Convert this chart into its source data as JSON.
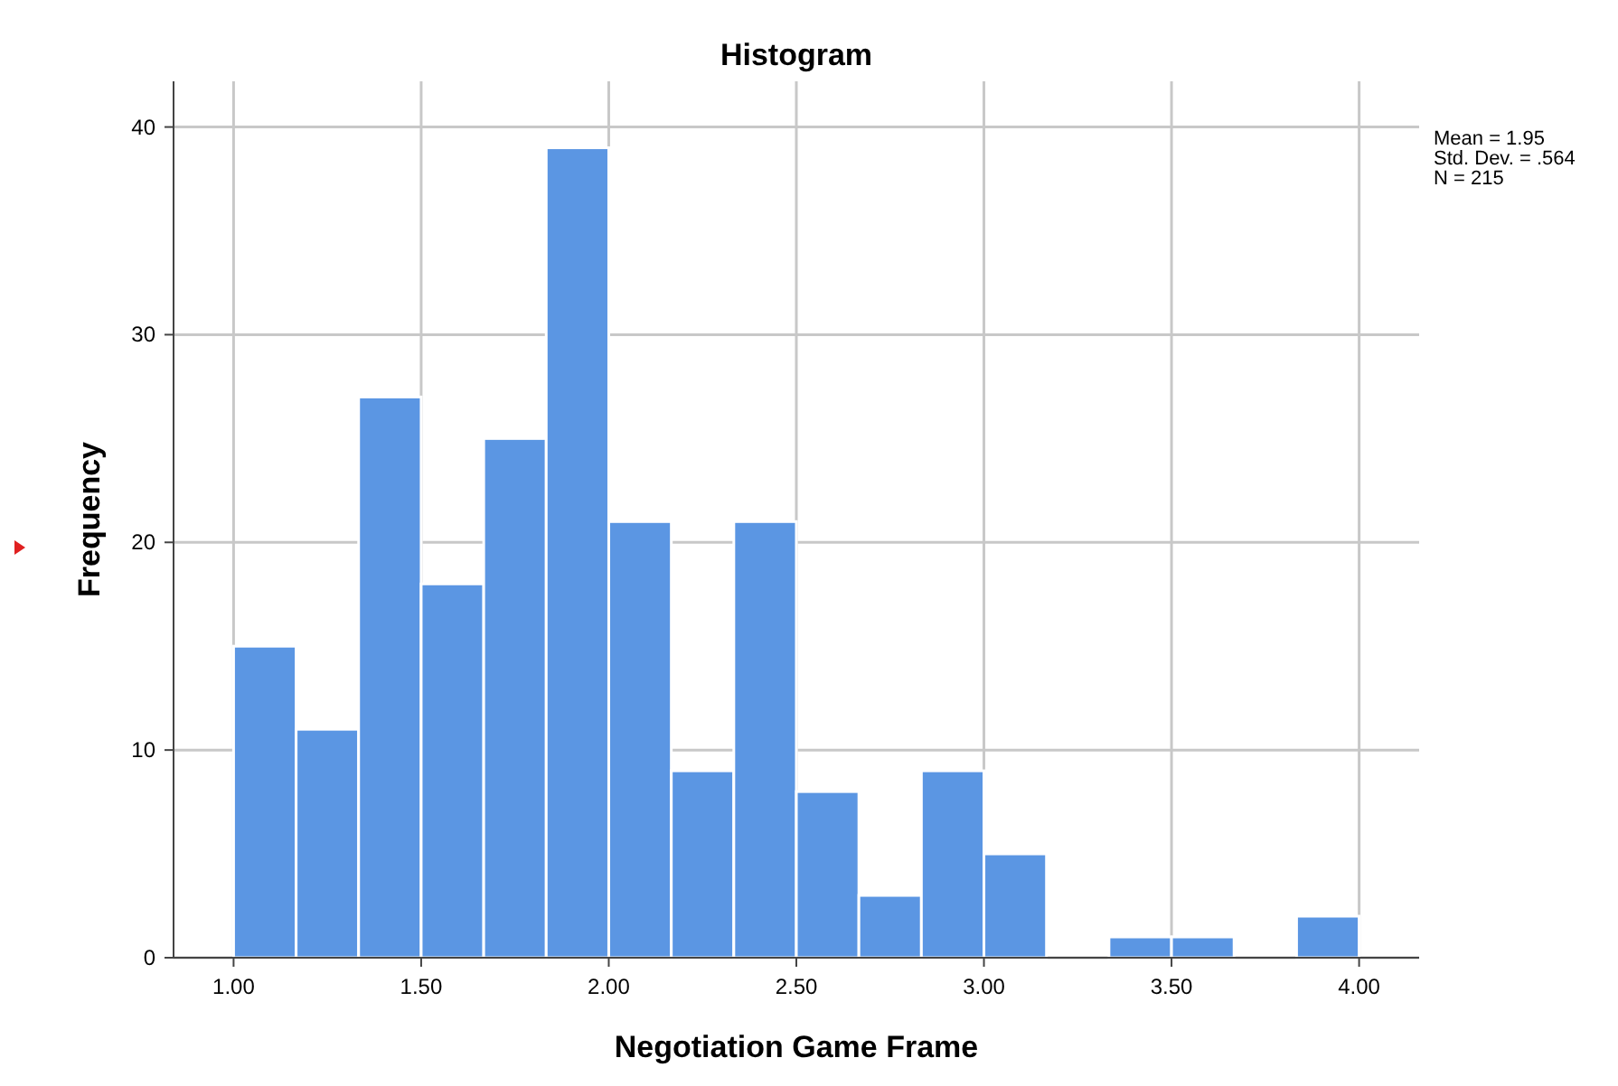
{
  "chart_data": {
    "type": "histogram",
    "title": "Histogram",
    "xlabel": "Negotiation Game Frame",
    "ylabel": "Frequency",
    "bins": [
      1,
      1.1667,
      1.3333,
      1.5,
      1.6667,
      1.8333,
      2,
      2.1667,
      2.3333,
      2.5,
      2.6667,
      2.8333,
      3,
      3.1667,
      3.3333,
      3.5,
      3.6667,
      3.8333,
      4
    ],
    "values": [
      15,
      11,
      27,
      18,
      25,
      39,
      21,
      9,
      21,
      8,
      3,
      9,
      5,
      0,
      1,
      1,
      0,
      2
    ],
    "color": "#5b96e3",
    "xlim": [
      0.84,
      4.16
    ],
    "xticks": [
      {
        "value": 1,
        "label": "1.00"
      },
      {
        "value": 1.5,
        "label": "1.50"
      },
      {
        "value": 2,
        "label": "2.00"
      },
      {
        "value": 2.5,
        "label": "2.50"
      },
      {
        "value": 3,
        "label": "3.00"
      },
      {
        "value": 3.5,
        "label": "3.50"
      },
      {
        "value": 4,
        "label": "4.00"
      }
    ],
    "ylim": [
      0,
      42.2
    ],
    "yticks": [
      0,
      10,
      20,
      30,
      40
    ],
    "grid": true,
    "annotations": [
      "Mean = 1.95",
      "Std. Dev. = .564",
      "N = 215"
    ]
  }
}
